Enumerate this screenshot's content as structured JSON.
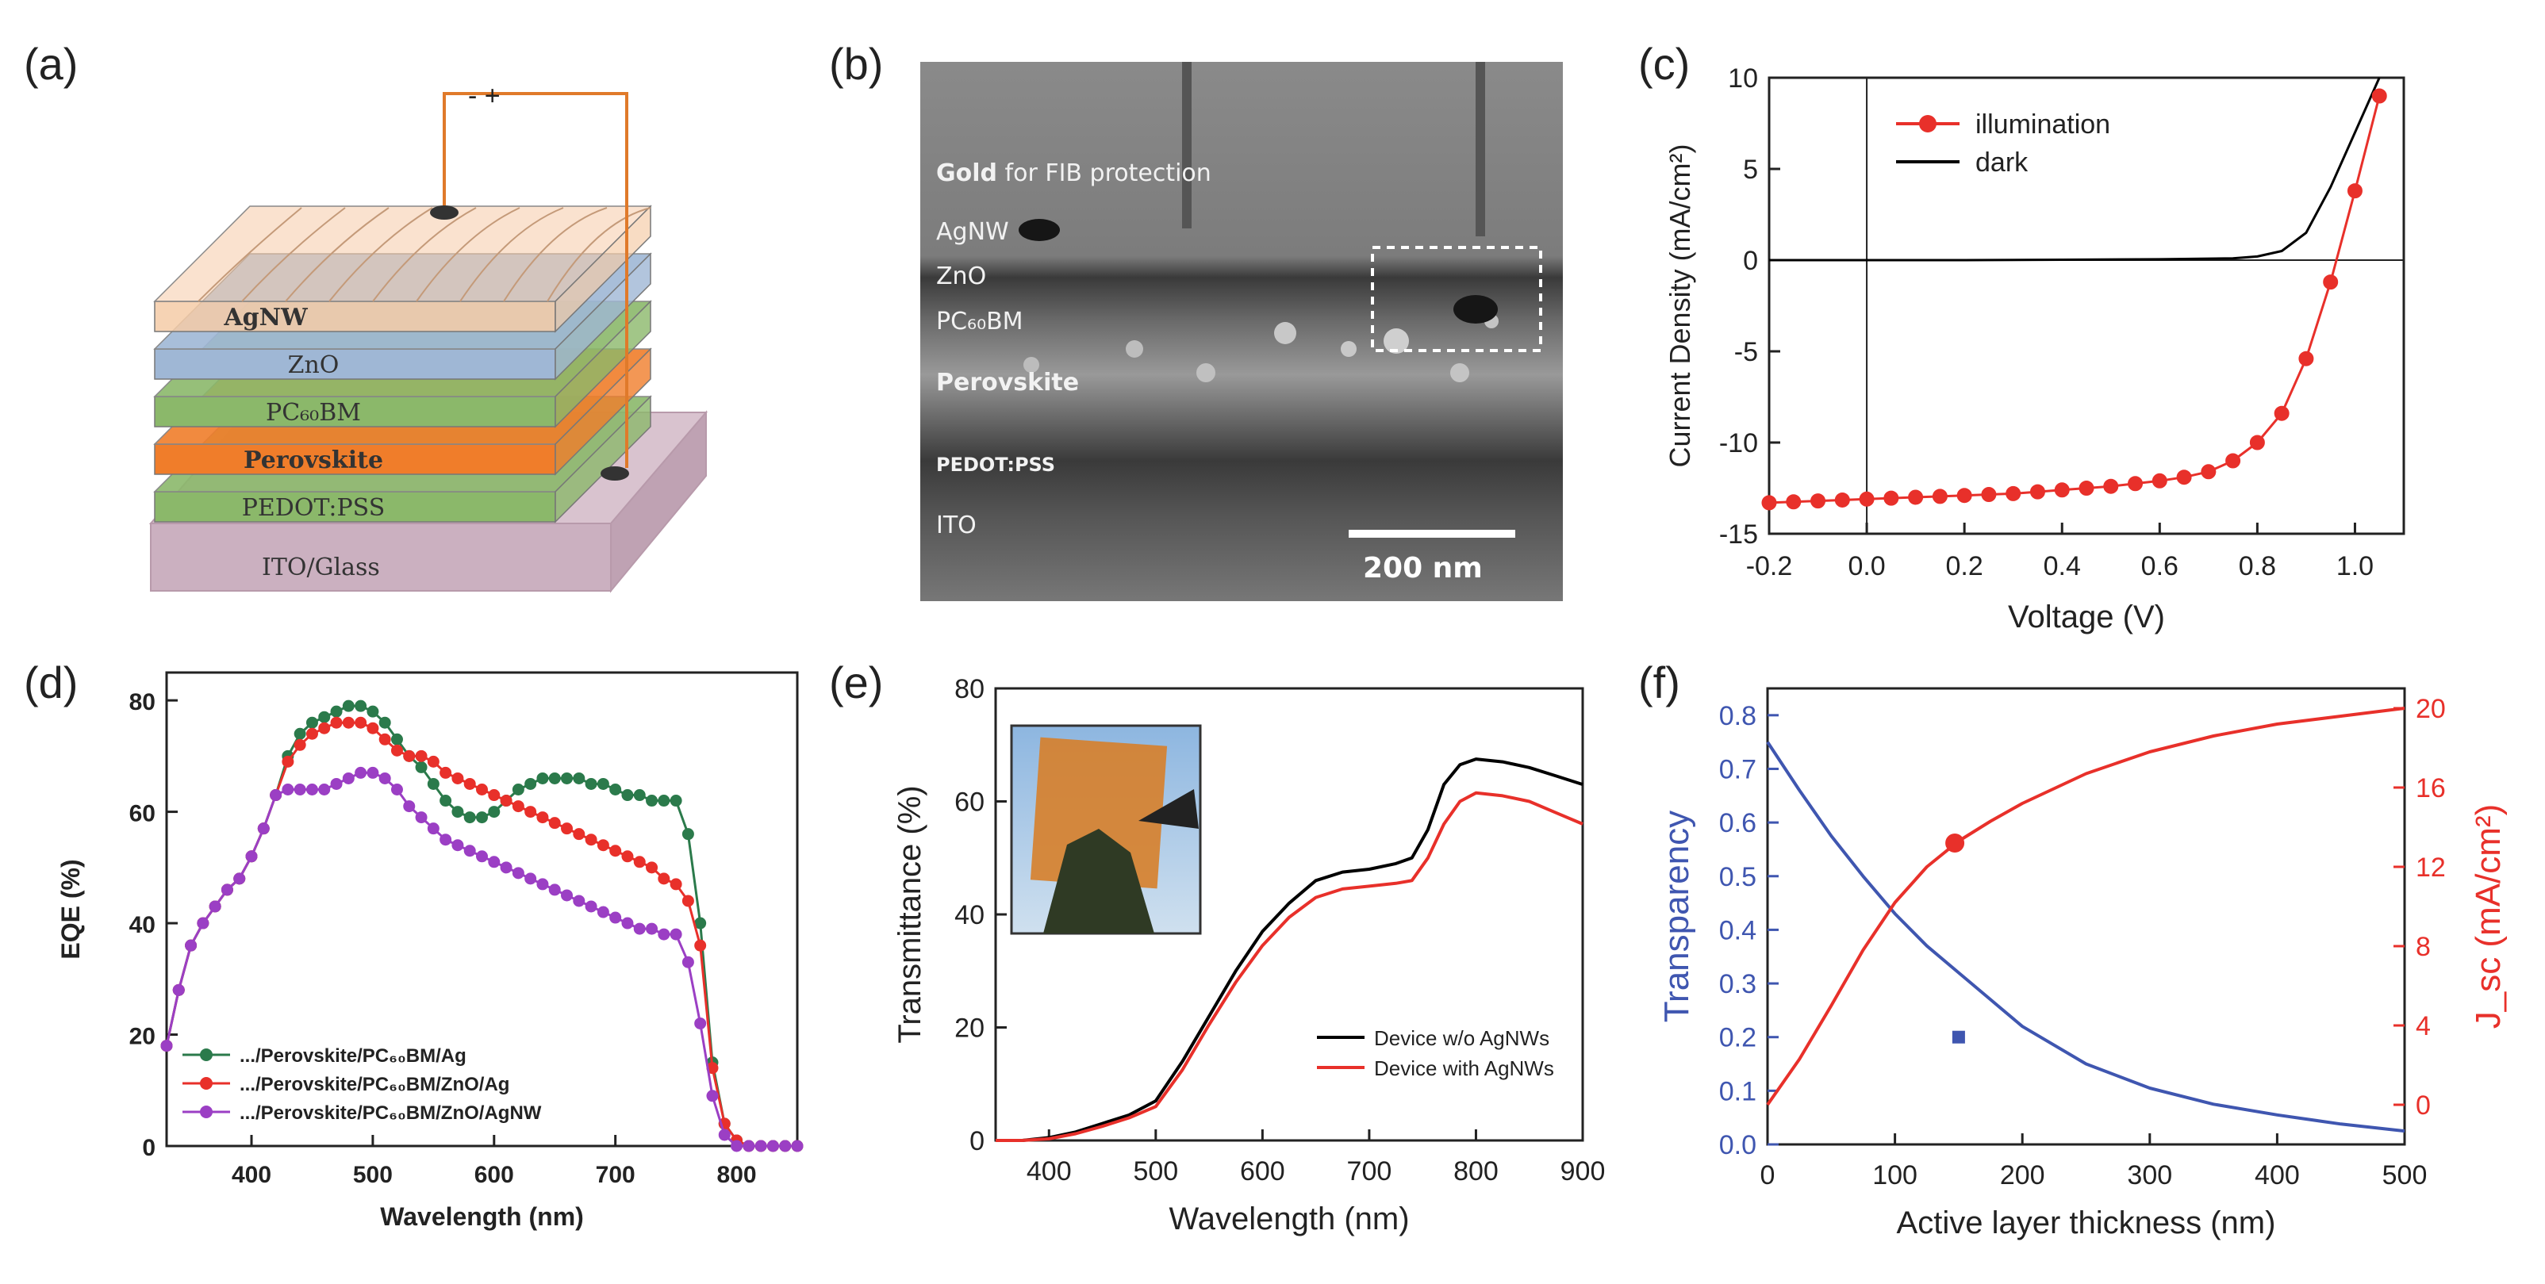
{
  "panels": {
    "a": {
      "label": "(a)",
      "polarity": "- +",
      "layers": [
        "AgNW",
        "ZnO",
        "PC₆₀BM",
        "Perovskite",
        "PEDOT:PSS",
        "ITO/Glass"
      ],
      "colors": [
        "#f5cba7",
        "#9fb7d5",
        "#8bb86a",
        "#f07d2a",
        "#8bb86a",
        "#d9c3cf"
      ]
    },
    "b": {
      "label": "(b)",
      "layers": [
        "Gold for FIB protection",
        "AgNW",
        "ZnO",
        "PC₆₀BM",
        "Perovskite",
        "PEDOT:PSS",
        "ITO"
      ],
      "scalebar": "200 nm"
    },
    "c": {
      "label": "(c)"
    },
    "d": {
      "label": "(d)"
    },
    "e": {
      "label": "(e)"
    },
    "f": {
      "label": "(f)"
    }
  },
  "colors": {
    "red": "#e8302a",
    "black": "#000000",
    "blue": "#3f56b0",
    "green": "#2b7a4b",
    "purple": "#9b3fc4",
    "orange": "#f07d2a"
  },
  "chart_data": [
    {
      "id": "c",
      "type": "line",
      "xlabel": "Voltage (V)",
      "ylabel": "Current Density (mA/cm²)",
      "xlim": [
        -0.2,
        1.1
      ],
      "ylim": [
        -15,
        10
      ],
      "xticks": [
        -0.2,
        0.0,
        0.2,
        0.4,
        0.6,
        0.8,
        1.0
      ],
      "yticks": [
        -15,
        -10,
        -5,
        0,
        5,
        10
      ],
      "xtick_labels": [
        "-0.2",
        "0.0",
        "0.2",
        "0.4",
        "0.6",
        "0.8",
        "1.0"
      ],
      "ytick_labels": [
        "-15",
        "-10",
        "-5",
        "0",
        "5",
        "10"
      ],
      "legend_position": "top-right",
      "series": [
        {
          "name": "illumination",
          "color": "#e8302a",
          "marker": "circle",
          "x": [
            -0.2,
            -0.15,
            -0.1,
            -0.05,
            0.0,
            0.05,
            0.1,
            0.15,
            0.2,
            0.25,
            0.3,
            0.35,
            0.4,
            0.45,
            0.5,
            0.55,
            0.6,
            0.65,
            0.7,
            0.75,
            0.8,
            0.85,
            0.9,
            0.95,
            1.0,
            1.05
          ],
          "y": [
            -13.3,
            -13.25,
            -13.2,
            -13.15,
            -13.1,
            -13.05,
            -13.0,
            -12.95,
            -12.9,
            -12.85,
            -12.8,
            -12.7,
            -12.6,
            -12.5,
            -12.4,
            -12.25,
            -12.1,
            -11.9,
            -11.6,
            -11.0,
            -10.0,
            -8.4,
            -5.4,
            -1.2,
            3.8,
            9.0
          ]
        },
        {
          "name": "dark",
          "color": "#000000",
          "marker": "none",
          "x": [
            -0.2,
            0.0,
            0.2,
            0.4,
            0.6,
            0.75,
            0.8,
            0.85,
            0.9,
            0.95,
            1.0,
            1.05
          ],
          "y": [
            0.0,
            0.0,
            0.0,
            0.02,
            0.05,
            0.1,
            0.2,
            0.5,
            1.5,
            4.0,
            7.0,
            10.0
          ]
        }
      ]
    },
    {
      "id": "d",
      "type": "line",
      "xlabel": "Wavelength (nm)",
      "ylabel": "EQE (%)",
      "xlim": [
        330,
        850
      ],
      "ylim": [
        0,
        85
      ],
      "xticks": [
        400,
        500,
        600,
        700,
        800
      ],
      "yticks": [
        0,
        20,
        40,
        60,
        80
      ],
      "xtick_labels": [
        "400",
        "500",
        "600",
        "700",
        "800"
      ],
      "ytick_labels": [
        "0",
        "20",
        "40",
        "60",
        "80"
      ],
      "legend_position": "bottom-left",
      "series": [
        {
          "name": ".../Perovskite/PC₆₀BM/Ag",
          "color": "#2b7a4b",
          "x": [
            330,
            340,
            350,
            360,
            370,
            380,
            390,
            400,
            410,
            420,
            430,
            440,
            450,
            460,
            470,
            480,
            490,
            500,
            510,
            520,
            530,
            540,
            550,
            560,
            570,
            580,
            590,
            600,
            610,
            620,
            630,
            640,
            650,
            660,
            670,
            680,
            690,
            700,
            710,
            720,
            730,
            740,
            750,
            760,
            770,
            780,
            790,
            800,
            810,
            820,
            830,
            840,
            850
          ],
          "y": [
            18,
            28,
            36,
            40,
            43,
            46,
            48,
            52,
            57,
            63,
            70,
            74,
            76,
            77,
            78,
            79,
            79,
            78,
            76,
            73,
            70,
            68,
            65,
            62,
            60,
            59,
            59,
            60,
            62,
            64,
            65,
            66,
            66,
            66,
            66,
            65,
            65,
            64,
            63,
            63,
            62,
            62,
            62,
            56,
            40,
            15,
            4,
            1,
            0,
            0,
            0,
            0,
            0
          ]
        },
        {
          "name": ".../Perovskite/PC₆₀BM/ZnO/Ag",
          "color": "#e8302a",
          "x": [
            330,
            340,
            350,
            360,
            370,
            380,
            390,
            400,
            410,
            420,
            430,
            440,
            450,
            460,
            470,
            480,
            490,
            500,
            510,
            520,
            530,
            540,
            550,
            560,
            570,
            580,
            590,
            600,
            610,
            620,
            630,
            640,
            650,
            660,
            670,
            680,
            690,
            700,
            710,
            720,
            730,
            740,
            750,
            760,
            770,
            780,
            790,
            800,
            810,
            820,
            830,
            840,
            850
          ],
          "y": [
            18,
            28,
            36,
            40,
            43,
            46,
            48,
            52,
            57,
            63,
            69,
            72,
            74,
            75,
            76,
            76,
            76,
            75,
            73,
            71,
            70,
            70,
            69,
            67,
            66,
            65,
            64,
            63,
            62,
            61,
            60,
            59,
            58,
            57,
            56,
            55,
            54,
            53,
            52,
            51,
            50,
            48,
            47,
            44,
            36,
            14,
            4,
            1,
            0,
            0,
            0,
            0,
            0
          ]
        },
        {
          "name": ".../Perovskite/PC₆₀BM/ZnO/AgNW",
          "color": "#9b3fc4",
          "x": [
            330,
            340,
            350,
            360,
            370,
            380,
            390,
            400,
            410,
            420,
            430,
            440,
            450,
            460,
            470,
            480,
            490,
            500,
            510,
            520,
            530,
            540,
            550,
            560,
            570,
            580,
            590,
            600,
            610,
            620,
            630,
            640,
            650,
            660,
            670,
            680,
            690,
            700,
            710,
            720,
            730,
            740,
            750,
            760,
            770,
            780,
            790,
            800,
            810,
            820,
            830,
            840,
            850
          ],
          "y": [
            18,
            28,
            36,
            40,
            43,
            46,
            48,
            52,
            57,
            63,
            64,
            64,
            64,
            64,
            65,
            66,
            67,
            67,
            66,
            64,
            61,
            59,
            57,
            55,
            54,
            53,
            52,
            51,
            50,
            49,
            48,
            47,
            46,
            45,
            44,
            43,
            42,
            41,
            40,
            39,
            39,
            38,
            38,
            33,
            22,
            9,
            2,
            0,
            0,
            0,
            0,
            0,
            0
          ]
        }
      ]
    },
    {
      "id": "e",
      "type": "line",
      "xlabel": "Wavelength (nm)",
      "ylabel": "Transmittance (%)",
      "xlim": [
        350,
        900
      ],
      "ylim": [
        0,
        80
      ],
      "xticks": [
        400,
        500,
        600,
        700,
        800,
        900
      ],
      "yticks": [
        0,
        20,
        40,
        60,
        80
      ],
      "xtick_labels": [
        "400",
        "500",
        "600",
        "700",
        "800",
        "900"
      ],
      "ytick_labels": [
        "0",
        "20",
        "40",
        "60",
        "80"
      ],
      "legend_position": "bottom-right",
      "inset": "photo",
      "series": [
        {
          "name": "Device w/o AgNWs",
          "color": "#000000",
          "x": [
            350,
            375,
            400,
            425,
            450,
            475,
            500,
            525,
            550,
            575,
            600,
            625,
            650,
            675,
            700,
            725,
            740,
            755,
            770,
            785,
            800,
            825,
            850,
            875,
            900
          ],
          "y": [
            0,
            0,
            0.5,
            1.5,
            3,
            4.5,
            7,
            14,
            22,
            30,
            37,
            42,
            46,
            47.5,
            48,
            49,
            50,
            55,
            63,
            66.5,
            67.5,
            67,
            66,
            64.5,
            63
          ]
        },
        {
          "name": "Device with AgNWs",
          "color": "#e8302a",
          "x": [
            350,
            375,
            400,
            425,
            450,
            475,
            500,
            525,
            550,
            575,
            600,
            625,
            650,
            675,
            700,
            725,
            740,
            755,
            770,
            785,
            800,
            825,
            850,
            875,
            900
          ],
          "y": [
            0,
            0,
            0.3,
            1.2,
            2.5,
            4,
            6,
            12.5,
            20.5,
            28,
            34.5,
            39.5,
            43,
            44.5,
            45,
            45.5,
            46,
            50,
            56,
            60,
            61.5,
            61,
            60,
            58,
            56
          ]
        }
      ]
    },
    {
      "id": "f",
      "type": "line",
      "xlabel": "Active layer thickness (nm)",
      "ylabel": "Transparency",
      "ylabel_right": "J_sc (mA/cm²)",
      "xlim": [
        0,
        500
      ],
      "ylim": [
        0,
        0.85
      ],
      "ylim_right": [
        -2,
        21
      ],
      "xticks": [
        0,
        100,
        200,
        300,
        400,
        500
      ],
      "yticks": [
        0.0,
        0.1,
        0.2,
        0.3,
        0.4,
        0.5,
        0.6,
        0.7,
        0.8
      ],
      "yticks_right": [
        0,
        4,
        8,
        12,
        16,
        20
      ],
      "xtick_labels": [
        "0",
        "100",
        "200",
        "300",
        "400",
        "500"
      ],
      "ytick_labels": [
        "0.0",
        "0.1",
        "0.2",
        "0.3",
        "0.4",
        "0.5",
        "0.6",
        "0.7",
        "0.8"
      ],
      "ytick_labels_right": [
        "0",
        "4",
        "8",
        "12",
        "16",
        "20"
      ],
      "series": [
        {
          "axis": "left",
          "color": "#3f56b0",
          "x": [
            0,
            25,
            50,
            75,
            100,
            125,
            150,
            175,
            200,
            250,
            300,
            350,
            400,
            450,
            500
          ],
          "y": [
            0.75,
            0.66,
            0.575,
            0.5,
            0.43,
            0.37,
            0.32,
            0.27,
            0.22,
            0.15,
            0.105,
            0.075,
            0.055,
            0.038,
            0.025
          ]
        },
        {
          "axis": "right",
          "color": "#e8302a",
          "x": [
            0,
            25,
            50,
            75,
            100,
            125,
            150,
            175,
            200,
            250,
            300,
            350,
            400,
            450,
            500
          ],
          "y": [
            0.0,
            2.3,
            5.0,
            7.8,
            10.2,
            12.0,
            13.3,
            14.3,
            15.2,
            16.7,
            17.8,
            18.6,
            19.2,
            19.6,
            20.0
          ]
        }
      ],
      "points": [
        {
          "axis": "left",
          "x": 150,
          "y": 0.2,
          "color": "#3f56b0",
          "marker": "square"
        },
        {
          "axis": "right",
          "x": 147,
          "y": 13.2,
          "color": "#e8302a",
          "marker": "circle"
        }
      ]
    }
  ]
}
